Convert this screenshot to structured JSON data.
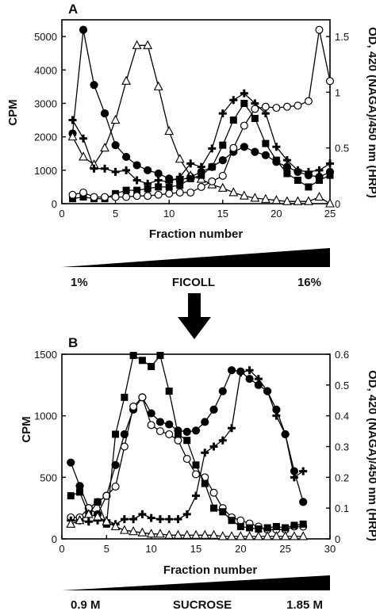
{
  "figure": {
    "arrow": "down-arrow"
  },
  "chart_data": [
    {
      "panel": "A",
      "type": "line",
      "xlabel": "Fraction number",
      "ylabel": "CPM",
      "y2label": "OD, 420 (NAGA)/450 nm (HRP)",
      "xlim": [
        0,
        25
      ],
      "ylim": [
        0,
        5500
      ],
      "y2lim": [
        0,
        1.65
      ],
      "xticks": [
        0,
        5,
        10,
        15,
        20,
        25
      ],
      "yticks": [
        0,
        1000,
        2000,
        3000,
        4000,
        5000
      ],
      "y2ticks": [
        0,
        0.5,
        1,
        1.5
      ],
      "gradient": {
        "start": "1%",
        "label": "FICOLL",
        "end": "16%"
      },
      "series": [
        {
          "marker": "filled-circle",
          "axis": "left",
          "x": [
            1,
            2,
            3,
            4,
            5,
            6,
            7,
            8,
            9,
            10,
            11,
            12,
            13,
            14,
            15,
            16,
            17,
            18,
            19,
            20,
            21,
            22,
            23,
            24,
            25
          ],
          "values": [
            2100,
            5200,
            3550,
            2700,
            1750,
            1400,
            1150,
            1000,
            900,
            750,
            700,
            800,
            950,
            1100,
            1300,
            1550,
            1700,
            1550,
            1450,
            1250,
            1100,
            950,
            850,
            800,
            950
          ]
        },
        {
          "marker": "open-triangle",
          "axis": "right",
          "x": [
            1,
            2,
            3,
            4,
            5,
            6,
            7,
            8,
            9,
            10,
            11,
            12,
            13,
            14,
            15,
            16,
            17,
            18,
            19,
            20,
            21,
            22,
            23,
            24,
            25
          ],
          "values": [
            0.6,
            0.42,
            0.35,
            0.5,
            0.75,
            1.1,
            1.42,
            1.42,
            1.05,
            0.65,
            0.4,
            0.25,
            0.22,
            0.17,
            0.14,
            0.1,
            0.07,
            0.05,
            0.04,
            0.03,
            0.02,
            0.02,
            0.02,
            0.06,
            0.0
          ]
        },
        {
          "marker": "plus",
          "axis": "left",
          "x": [
            1,
            2,
            3,
            4,
            5,
            6,
            7,
            8,
            9,
            10,
            11,
            12,
            13,
            14,
            15,
            16,
            17,
            18,
            19,
            20,
            21,
            22,
            23,
            24,
            25
          ],
          "values": [
            2500,
            1950,
            1050,
            1050,
            950,
            1000,
            700,
            600,
            700,
            650,
            800,
            1200,
            1100,
            1650,
            2700,
            3100,
            3300,
            3000,
            2700,
            1700,
            1300,
            1000,
            950,
            1000,
            1200
          ]
        },
        {
          "marker": "filled-square",
          "axis": "left",
          "x": [
            1,
            2,
            3,
            4,
            5,
            6,
            7,
            8,
            9,
            10,
            11,
            12,
            13,
            14,
            15,
            16,
            17,
            18,
            19,
            20,
            21,
            22,
            23,
            24,
            25
          ],
          "values": [
            150,
            200,
            150,
            150,
            300,
            400,
            400,
            450,
            500,
            500,
            550,
            750,
            850,
            1100,
            1750,
            2500,
            3000,
            2550,
            1800,
            1300,
            900,
            700,
            500,
            700,
            850
          ]
        },
        {
          "marker": "open-circle",
          "axis": "right",
          "x": [
            1,
            2,
            3,
            4,
            5,
            6,
            7,
            8,
            9,
            10,
            11,
            12,
            13,
            14,
            15,
            16,
            17,
            18,
            19,
            20,
            21,
            22,
            23,
            24,
            25
          ],
          "values": [
            0.08,
            0.1,
            0.06,
            0.06,
            0.06,
            0.06,
            0.07,
            0.07,
            0.08,
            0.09,
            0.1,
            0.1,
            0.15,
            0.2,
            0.25,
            0.5,
            0.7,
            0.85,
            0.87,
            0.86,
            0.87,
            0.88,
            0.92,
            1.56,
            1.1
          ]
        }
      ]
    },
    {
      "panel": "B",
      "type": "line",
      "xlabel": "Fraction number",
      "ylabel": "CPM",
      "y2label": "OD, 420 (NAGA)/450 nm (HRP)",
      "xlim": [
        0,
        30
      ],
      "ylim": [
        0,
        1500
      ],
      "y2lim": [
        0,
        0.6
      ],
      "xticks": [
        0,
        5,
        10,
        15,
        20,
        25,
        30
      ],
      "yticks": [
        0,
        500,
        1000,
        1500
      ],
      "y2ticks": [
        0,
        0.1,
        0.2,
        0.3,
        0.4,
        0.5,
        0.6
      ],
      "gradient": {
        "start": "0.9 M",
        "label": "SUCROSE",
        "end": "1.85 M"
      },
      "series": [
        {
          "marker": "filled-circle",
          "axis": "left",
          "x": [
            1,
            2,
            3,
            4,
            5,
            6,
            7,
            8,
            9,
            10,
            11,
            12,
            13,
            14,
            15,
            16,
            17,
            18,
            19,
            20,
            21,
            22,
            23,
            24,
            25,
            26,
            27
          ],
          "values": [
            620,
            430,
            250,
            200,
            350,
            600,
            850,
            1050,
            1150,
            1020,
            950,
            930,
            880,
            870,
            880,
            950,
            1050,
            1200,
            1370,
            1360,
            1300,
            1250,
            1200,
            1050,
            850,
            550,
            300
          ]
        },
        {
          "marker": "open-circle",
          "axis": "right",
          "x": [
            1,
            2,
            3,
            4,
            5,
            6,
            7,
            8,
            9,
            10,
            11,
            12,
            13,
            14,
            15,
            16,
            17,
            18,
            19,
            20,
            21,
            22,
            23,
            24,
            25,
            26,
            27
          ],
          "values": [
            0.07,
            0.07,
            0.1,
            0.12,
            0.14,
            0.17,
            0.3,
            0.43,
            0.46,
            0.37,
            0.35,
            0.34,
            0.32,
            0.26,
            0.21,
            0.2,
            0.15,
            0.1,
            0.07,
            0.06,
            0.05,
            0.04,
            0.03,
            0.03,
            0.03,
            0.04,
            0.04
          ]
        },
        {
          "marker": "filled-square",
          "axis": "left",
          "x": [
            1,
            2,
            3,
            4,
            5,
            6,
            7,
            8,
            9,
            10,
            11,
            12,
            13,
            14,
            15,
            16,
            17,
            18,
            19,
            20,
            21,
            22,
            23,
            24,
            25,
            26,
            27
          ],
          "values": [
            350,
            380,
            200,
            300,
            120,
            850,
            1150,
            1490,
            1450,
            1400,
            1490,
            1200,
            850,
            800,
            600,
            450,
            250,
            220,
            150,
            100,
            90,
            80,
            90,
            100,
            90,
            110,
            120
          ]
        },
        {
          "marker": "plus",
          "axis": "left",
          "x": [
            1,
            2,
            3,
            4,
            5,
            6,
            7,
            8,
            9,
            10,
            11,
            12,
            13,
            14,
            15,
            16,
            17,
            18,
            19,
            20,
            21,
            22,
            23,
            24,
            25,
            26,
            27
          ],
          "values": [
            150,
            150,
            140,
            150,
            150,
            120,
            160,
            160,
            200,
            170,
            160,
            160,
            160,
            200,
            350,
            700,
            750,
            800,
            900,
            1350,
            1370,
            1300,
            1200,
            1000,
            850,
            500,
            550
          ]
        },
        {
          "marker": "open-triangle",
          "axis": "left",
          "x": [
            1,
            2,
            3,
            4,
            5,
            6,
            7,
            8,
            9,
            10,
            11,
            12,
            13,
            14,
            15,
            16,
            17,
            18,
            19,
            20,
            21,
            22,
            23,
            24,
            25,
            26,
            27
          ],
          "values": [
            120,
            150,
            200,
            180,
            140,
            100,
            70,
            60,
            50,
            40,
            40,
            30,
            30,
            30,
            30,
            30,
            30,
            20,
            20,
            20,
            20,
            20,
            20,
            20,
            20,
            20,
            20
          ]
        }
      ]
    }
  ]
}
